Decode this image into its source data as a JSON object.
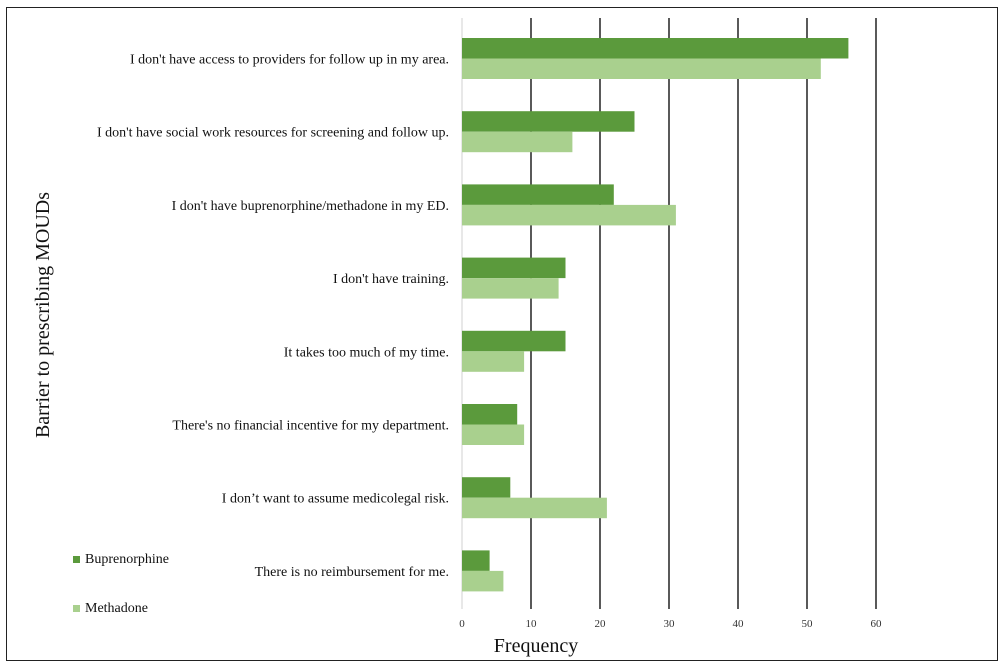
{
  "chart_data": {
    "type": "bar",
    "orientation": "horizontal",
    "xlabel": "Frequency",
    "ylabel": "Barrier to prescribing MOUDs",
    "xlim": [
      0,
      60
    ],
    "xticks": [
      0,
      10,
      20,
      30,
      40,
      50,
      60
    ],
    "grid": "vertical",
    "legend_position": "bottom-left",
    "categories": [
      "I don't have access to providers for follow up in my area.",
      "I don't have social work resources for screening and follow up.",
      "I don't have buprenorphine/methadone in my ED.",
      "I don't have training.",
      "It takes too much of my time.",
      "There's no financial incentive for my department.",
      "I don’t want to assume medicolegal risk.",
      "There is no reimbursement for me."
    ],
    "series": [
      {
        "name": "Buprenorphine",
        "color": "#5b9a3c",
        "values": [
          56,
          25,
          22,
          15,
          15,
          8,
          7,
          4
        ]
      },
      {
        "name": "Methadone",
        "color": "#a9d08e",
        "values": [
          52,
          16,
          31,
          14,
          9,
          9,
          21,
          6
        ]
      }
    ]
  }
}
